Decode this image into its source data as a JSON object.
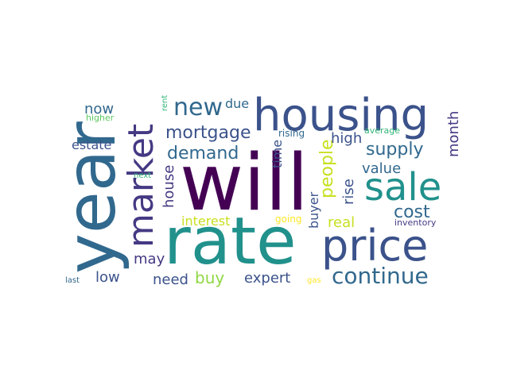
{
  "words": [
    {
      "text": "will",
      "color": "#440154",
      "vertical": false
    },
    {
      "text": "rate",
      "color": "#21918c",
      "vertical": false
    },
    {
      "text": "year",
      "color": "#31688e",
      "vertical": true
    },
    {
      "text": "housing",
      "color": "#3b528b",
      "vertical": false
    },
    {
      "text": "price",
      "color": "#3b528b",
      "vertical": false
    },
    {
      "text": "market",
      "color": "#443983",
      "vertical": true
    },
    {
      "text": "sale",
      "color": "#21918c",
      "vertical": false
    },
    {
      "text": "continue",
      "color": "#31688e",
      "vertical": false
    },
    {
      "text": "new",
      "color": "#31688e",
      "vertical": false
    },
    {
      "text": "mortgage",
      "color": "#3b528b",
      "vertical": false
    },
    {
      "text": "demand",
      "color": "#31688e",
      "vertical": false
    },
    {
      "text": "supply",
      "color": "#31688e",
      "vertical": false
    },
    {
      "text": "people",
      "color": "#c8e020",
      "vertical": true
    },
    {
      "text": "cost",
      "color": "#31688e",
      "vertical": false
    },
    {
      "text": "house",
      "color": "#443983",
      "vertical": true
    },
    {
      "text": "may",
      "color": "#443983",
      "vertical": false
    },
    {
      "text": "buy",
      "color": "#90d743",
      "vertical": false
    },
    {
      "text": "need",
      "color": "#3b528b",
      "vertical": false
    },
    {
      "text": "expert",
      "color": "#3b528b",
      "vertical": false
    },
    {
      "text": "low",
      "color": "#3b528b",
      "vertical": false
    },
    {
      "text": "now",
      "color": "#31688e",
      "vertical": false
    },
    {
      "text": "estate",
      "color": "#3b528b",
      "vertical": false
    },
    {
      "text": "due",
      "color": "#31688e",
      "vertical": false
    },
    {
      "text": "high",
      "color": "#3b528b",
      "vertical": false
    },
    {
      "text": "value",
      "color": "#31688e",
      "vertical": false
    },
    {
      "text": "month",
      "color": "#443983",
      "vertical": true
    },
    {
      "text": "rise",
      "color": "#3b528b",
      "vertical": true
    },
    {
      "text": "buyer",
      "color": "#3b528b",
      "vertical": true
    },
    {
      "text": "time",
      "color": "#3b528b",
      "vertical": true
    },
    {
      "text": "real",
      "color": "#c8e020",
      "vertical": false
    },
    {
      "text": "interest",
      "color": "#c8e020",
      "vertical": false
    },
    {
      "text": "going",
      "color": "#fde725",
      "vertical": false
    },
    {
      "text": "rising",
      "color": "#31688e",
      "vertical": false
    },
    {
      "text": "average",
      "color": "#35b779",
      "vertical": false
    },
    {
      "text": "inventory",
      "color": "#443983",
      "vertical": false
    },
    {
      "text": "higher",
      "color": "#5ec962",
      "vertical": false
    },
    {
      "text": "rent",
      "color": "#35b779",
      "vertical": true
    },
    {
      "text": "next",
      "color": "#35b779",
      "vertical": false
    },
    {
      "text": "last",
      "color": "#31688e",
      "vertical": false
    },
    {
      "text": "gas",
      "color": "#fde725",
      "vertical": false
    }
  ]
}
